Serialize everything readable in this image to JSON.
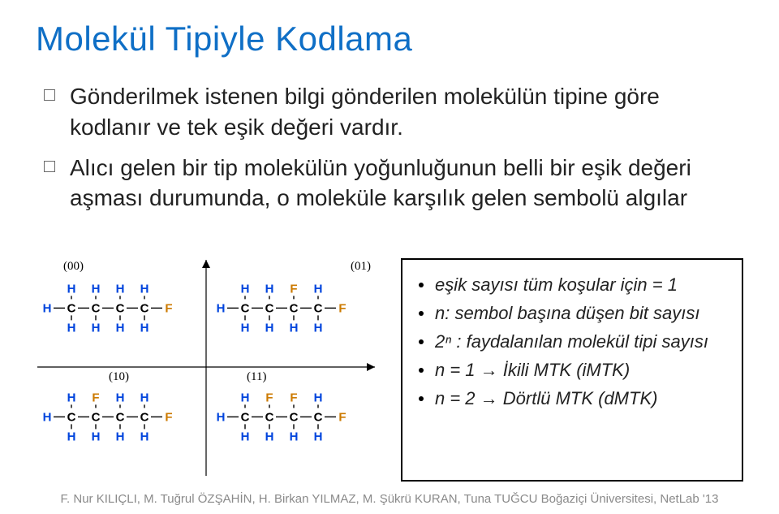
{
  "title": "Molekül Tipiyle Kodlama",
  "title_color": "#0f6fc6",
  "bullets": [
    "Gönderilmek istenen bilgi gönderilen molekülün tipine göre kodlanır ve tek eşik değeri vardır.",
    "Alıcı gelen bir tip molekülün yoğunluğunun belli bir eşik değeri aşması durumunda, o moleküle karşılık gelen sembolü algılar"
  ],
  "info_items": [
    "eşik sayısı tüm koşular için = 1",
    "n: sembol başına düşen bit sayısı",
    "2ⁿ : faydalanılan molekül tipi sayısı",
    "n = 1 → İkili MTK (iMTK)",
    "n = 2 → Dörtlü MTK (dMTK)"
  ],
  "footer": "F. Nur KILIÇLI, M. Tuğrul ÖZŞAHİN, H. Birkan YILMAZ, M. Şükrü KURAN, Tuna TUĞCU Boğaziçi Üniversitesi, NetLab '13",
  "figure": {
    "quadrant_labels": [
      "(00)",
      "(01)",
      "(10)",
      "(11)"
    ],
    "label_font": {
      "family": "Times New Roman, serif",
      "size": 15,
      "color": "#000000"
    },
    "axis_color": "#000000",
    "bond_color": "#000000",
    "bond_width": 1.4,
    "atom_H": {
      "glyph": "H",
      "color": "#0044dd"
    },
    "atom_C": {
      "glyph": "C",
      "color": "#000000"
    },
    "atom_F": {
      "glyph": "F",
      "color": "#cc7a00"
    },
    "atom_font": {
      "family": "Arial, sans-serif",
      "size": 15,
      "weight": "bold"
    },
    "molecules": [
      {
        "cell": 0,
        "top": [
          "H",
          "H",
          "H",
          "H"
        ],
        "mid": [
          "H",
          "C",
          "C",
          "C",
          "C",
          "F"
        ],
        "bot": [
          "H",
          "H",
          "H",
          "H"
        ]
      },
      {
        "cell": 1,
        "top": [
          "H",
          "H",
          "F",
          "H"
        ],
        "mid": [
          "H",
          "C",
          "C",
          "C",
          "C",
          "F"
        ],
        "bot": [
          "H",
          "H",
          "H",
          "H"
        ]
      },
      {
        "cell": 2,
        "top": [
          "H",
          "F",
          "H",
          "H"
        ],
        "mid": [
          "H",
          "C",
          "C",
          "C",
          "C",
          "F"
        ],
        "bot": [
          "H",
          "H",
          "H",
          "H"
        ]
      },
      {
        "cell": 3,
        "top": [
          "H",
          "F",
          "F",
          "H"
        ],
        "mid": [
          "H",
          "C",
          "C",
          "C",
          "C",
          "F"
        ],
        "bot": [
          "H",
          "H",
          "H",
          "H"
        ]
      }
    ]
  }
}
